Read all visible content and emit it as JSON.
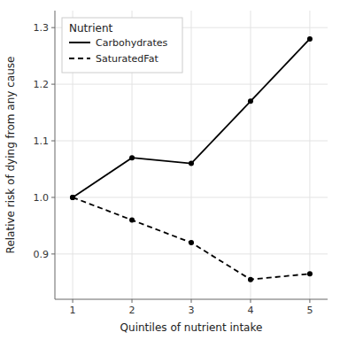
{
  "chart_data": {
    "type": "line",
    "xlabel": "Quintiles of nutrient intake",
    "ylabel": "Relative risk of dying from any cause",
    "legend_title": "Nutrient",
    "x": [
      1,
      2,
      3,
      4,
      5
    ],
    "series": [
      {
        "name": "Carbohydrates",
        "color": "#000000",
        "line_style": "solid",
        "marker": "circle",
        "values": [
          1.0,
          1.07,
          1.06,
          1.17,
          1.28
        ]
      },
      {
        "name": "SaturatedFat",
        "color": "#000000",
        "line_style": "dashed",
        "marker": "circle",
        "values": [
          1.0,
          0.96,
          0.92,
          0.855,
          0.865
        ]
      }
    ],
    "xlim": [
      0.7,
      5.3
    ],
    "ylim": [
      0.82,
      1.33
    ],
    "xticks": [
      1,
      2,
      3,
      4,
      5
    ],
    "yticks": [
      0.9,
      {
        "value": 1.0,
        "label": "1.0"
      },
      1.1,
      1.2,
      1.3
    ],
    "grid": true,
    "legend": "upper left"
  }
}
